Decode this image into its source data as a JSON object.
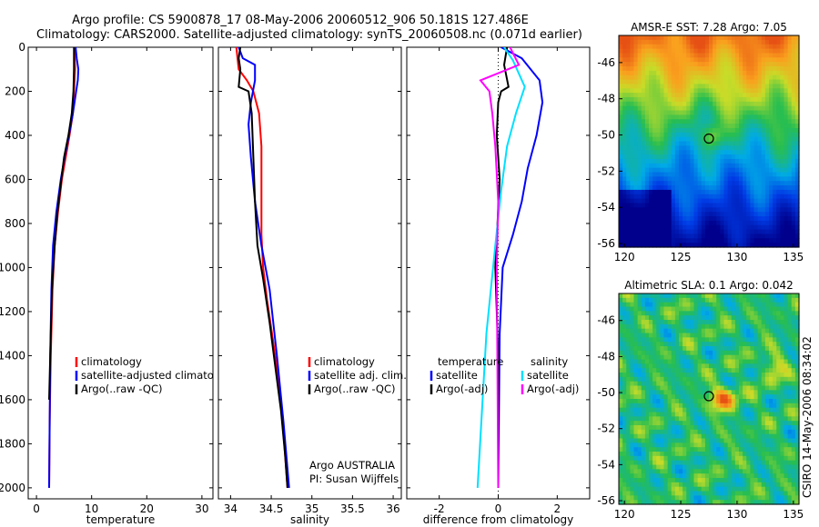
{
  "figure": {
    "title_line1": "Argo profile: CS 5900878_17 08-May-2006 20060512_906 50.181S 127.486E",
    "title_line2": "Climatology: CARS2000. Satellite-adjusted climatology: synTS_20060508.nc (0.071d earlier)",
    "credit": "CSIRO 14-May-2006 08:34:02",
    "colors": {
      "climatology": "#ff0000",
      "satellite": "#0000ff",
      "argo": "#000000",
      "argo_salinity": "#ff00ff",
      "satellite_salinity": "#00e0ff"
    }
  },
  "chart_data": [
    {
      "id": "temperature",
      "type": "line",
      "xlabel": "temperature",
      "xlim": [
        -1.5,
        32
      ],
      "ylim": [
        2050,
        0
      ],
      "xticks": [
        0,
        10,
        20,
        30
      ],
      "yticks": [
        0,
        200,
        400,
        600,
        800,
        1000,
        1200,
        1400,
        1600,
        1800,
        2000
      ],
      "legend": [
        "climatology",
        "satellite-adjusted climatology",
        "Argo(..raw -QC)"
      ],
      "series": [
        {
          "name": "climatology",
          "color": "#ff0000",
          "x": [
            6.9,
            7.0,
            6.8,
            6.6,
            6.0,
            5.3,
            4.6,
            3.9,
            3.3,
            2.9,
            2.6,
            2.4,
            2.3
          ],
          "y": [
            0,
            100,
            200,
            300,
            400,
            500,
            600,
            750,
            900,
            1100,
            1400,
            1700,
            2000
          ]
        },
        {
          "name": "satellite-adjusted climatology",
          "color": "#0000ff",
          "x": [
            7.1,
            7.3,
            7.6,
            7.5,
            7.2,
            6.6,
            5.9,
            5.1,
            4.4,
            3.6,
            3.0,
            2.7,
            2.5,
            2.4,
            2.3
          ],
          "y": [
            0,
            50,
            100,
            150,
            200,
            300,
            400,
            500,
            600,
            750,
            900,
            1100,
            1400,
            1700,
            2000
          ]
        },
        {
          "name": "Argo(..raw -QC)",
          "color": "#000000",
          "x": [
            6.8,
            6.8,
            6.7,
            6.4,
            5.8,
            5.0,
            4.5,
            3.8,
            3.3,
            2.8,
            2.5,
            2.3
          ],
          "y": [
            0,
            100,
            200,
            300,
            400,
            500,
            600,
            750,
            900,
            1100,
            1400,
            1600
          ]
        }
      ]
    },
    {
      "id": "salinity",
      "type": "line",
      "xlabel": "salinity",
      "xlim": [
        33.85,
        36.1
      ],
      "ylim": [
        2050,
        0
      ],
      "xticks": [
        34,
        34.5,
        35,
        35.5,
        36
      ],
      "xtick_labels": [
        "34",
        "34.5",
        "35",
        "35.5",
        "36"
      ],
      "legend": [
        "climatology",
        "satellite adj. clim.",
        "Argo(..raw -QC)"
      ],
      "annotation": [
        "Argo AUSTRALIA",
        "PI: Susan Wijffels"
      ],
      "series": [
        {
          "name": "climatology",
          "color": "#ff0000",
          "x": [
            34.07,
            34.1,
            34.2,
            34.28,
            34.35,
            34.38,
            34.38,
            34.38,
            34.4,
            34.45,
            34.53,
            34.6,
            34.66,
            34.7
          ],
          "y": [
            0,
            100,
            150,
            200,
            300,
            450,
            650,
            850,
            1000,
            1150,
            1350,
            1550,
            1800,
            2000
          ]
        },
        {
          "name": "satellite adj. clim.",
          "color": "#0000ff",
          "x": [
            34.1,
            34.15,
            34.3,
            34.3,
            34.25,
            34.22,
            34.25,
            34.3,
            34.38,
            34.48,
            34.57,
            34.65,
            34.72
          ],
          "y": [
            0,
            50,
            80,
            150,
            250,
            350,
            500,
            700,
            900,
            1100,
            1400,
            1700,
            2000
          ]
        },
        {
          "name": "Argo(..raw -QC)",
          "color": "#000000",
          "x": [
            34.12,
            34.1,
            34.12,
            34.1,
            34.22,
            34.26,
            34.28,
            34.3,
            34.33,
            34.4,
            34.48,
            34.55,
            34.62,
            34.67,
            34.7
          ],
          "y": [
            0,
            50,
            100,
            180,
            200,
            300,
            500,
            700,
            900,
            1050,
            1250,
            1450,
            1650,
            1850,
            2000
          ]
        }
      ]
    },
    {
      "id": "difference",
      "type": "line",
      "xlabel": "difference from climatology",
      "xlim": [
        -3.1,
        3.1
      ],
      "ylim": [
        2050,
        0
      ],
      "xticks": [
        -2,
        0,
        2
      ],
      "legend_temperature_header": "temperature",
      "legend_salinity_header": "salinity",
      "legend": [
        "satellite",
        "Argo(-adj)",
        "satellite",
        "Argo(-adj)"
      ],
      "series": [
        {
          "name": "satellite",
          "group": "temperature",
          "color": "#0000ff",
          "x": [
            0.1,
            0.8,
            1.4,
            1.5,
            1.3,
            1.0,
            0.8,
            0.5,
            0.15,
            0.05,
            0.0
          ],
          "y": [
            0,
            50,
            150,
            250,
            400,
            550,
            700,
            850,
            1000,
            1300,
            2000
          ]
        },
        {
          "name": "Argo(-adj)",
          "group": "temperature",
          "color": "#000000",
          "x": [
            0.3,
            0.2,
            0.35,
            0.1,
            0.0,
            -0.05,
            0.05,
            -0.1,
            0.0,
            0.0
          ],
          "y": [
            0,
            80,
            180,
            200,
            250,
            400,
            600,
            1000,
            1400,
            2000
          ]
        },
        {
          "name": "satellite",
          "group": "salinity",
          "color": "#00e0ff",
          "x": [
            0.2,
            0.5,
            0.9,
            0.6,
            0.3,
            0.1,
            -0.1,
            -0.4,
            -0.7
          ],
          "y": [
            0,
            60,
            180,
            300,
            450,
            650,
            900,
            1300,
            2000
          ]
        },
        {
          "name": "Argo(-adj)",
          "group": "salinity",
          "color": "#ff00ff",
          "x": [
            0.4,
            0.7,
            -0.6,
            -0.3,
            -0.2,
            -0.1,
            0.0,
            -0.05,
            0.0
          ],
          "y": [
            0,
            80,
            150,
            200,
            300,
            450,
            700,
            1000,
            2000
          ]
        }
      ]
    },
    {
      "id": "sst_map",
      "type": "heatmap",
      "title": "AMSR-E SST: 7.28 Argo: 7.05",
      "xlim": [
        119.5,
        135.5
      ],
      "ylim": [
        -56.2,
        -44.5
      ],
      "xticks": [
        120,
        125,
        130,
        135
      ],
      "yticks": [
        -46,
        -48,
        -50,
        -52,
        -54,
        -56
      ],
      "argo_position": {
        "lon": 127.5,
        "lat": -50.2
      }
    },
    {
      "id": "sla_map",
      "type": "heatmap",
      "title": "Altimetric SLA: 0.1 Argo: 0.042",
      "xlim": [
        119.5,
        135.5
      ],
      "ylim": [
        -56.2,
        -44.5
      ],
      "xticks": [
        120,
        125,
        130,
        135
      ],
      "yticks": [
        -46,
        -48,
        -50,
        -52,
        -54,
        -56
      ],
      "argo_position": {
        "lon": 127.5,
        "lat": -50.2
      }
    }
  ]
}
